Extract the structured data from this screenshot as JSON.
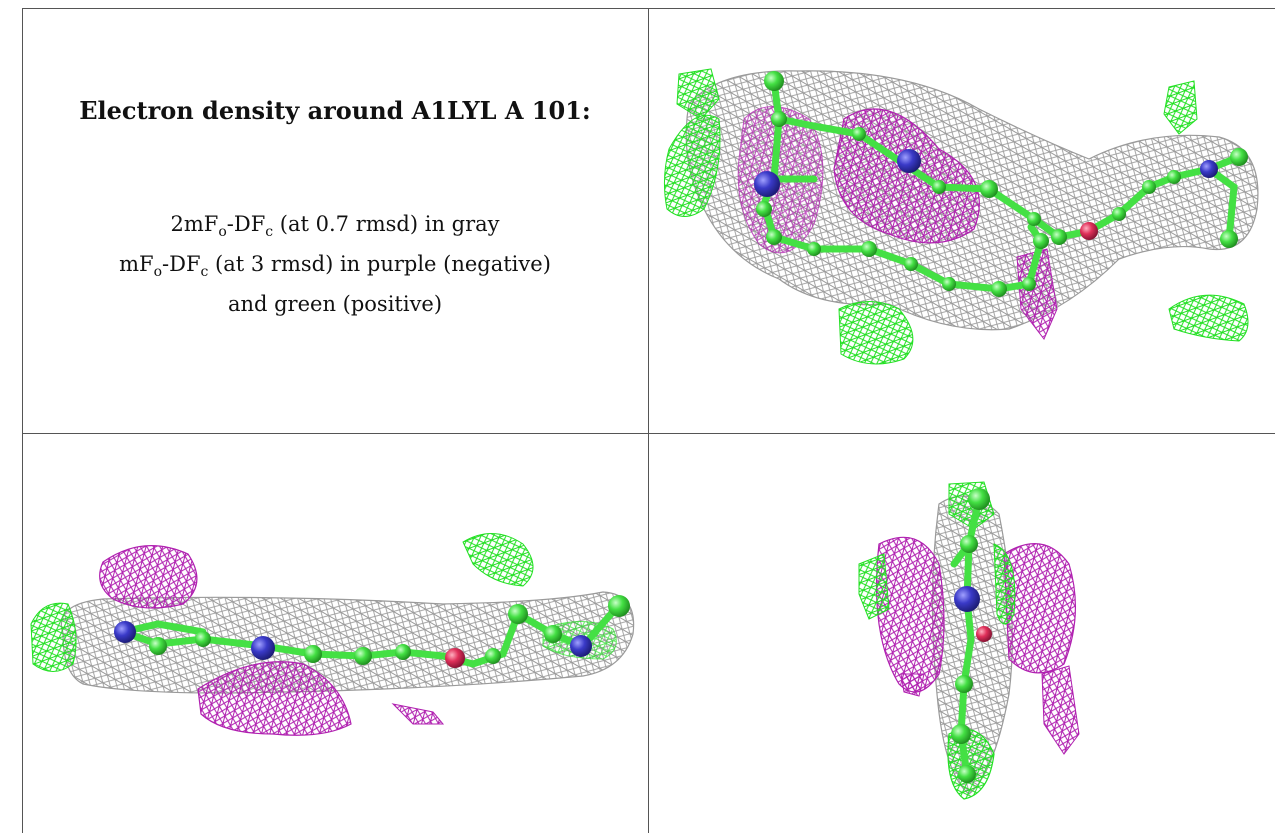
{
  "caption": {
    "title": "Electron density around A1LYL A 101:",
    "line1_prefix": "2mF",
    "line1_sub_o": "o",
    "line1_mid": "-DF",
    "line1_sub_c": "c",
    "line1_suffix": " (at 0.7 rmsd) in gray",
    "line2_prefix": "mF",
    "line2_sub_o": "o",
    "line2_mid": "-DF",
    "line2_sub_c": "c",
    "line2_suffix": " (at 3 rmsd) in purple (negative)",
    "line3": "and green (positive)"
  },
  "colors": {
    "gray_mesh": "#9a9a9a",
    "negative_mesh": "#b020b0",
    "positive_mesh": "#22e022",
    "carbon_atom": "#44e044",
    "nitrogen_atom": "#3a3ac8",
    "oxygen_atom": "#e0305a"
  }
}
